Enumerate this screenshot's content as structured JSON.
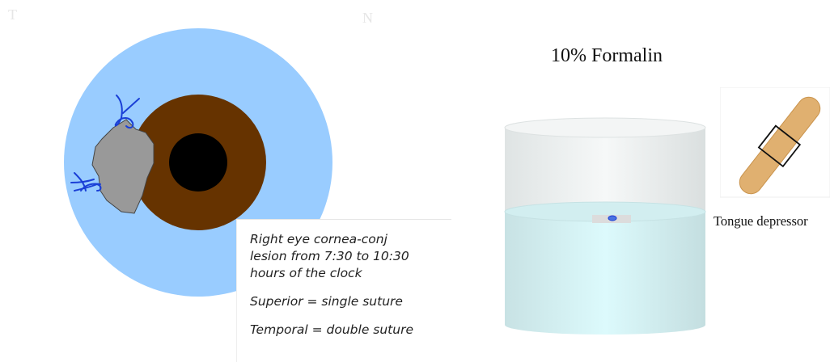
{
  "orientation": {
    "temporal": "T",
    "nasal": "N"
  },
  "note": {
    "lines": [
      "Right eye cornea-conj",
      "lesion from 7:30 to 10:30",
      "hours of the clock"
    ],
    "superior": "Superior = single suture",
    "temporal": "Temporal = double suture"
  },
  "container": {
    "title": "10% Formalin"
  },
  "tongue_depressor": {
    "caption": "Tongue depressor"
  },
  "colors": {
    "conjunctiva": "#99ccff",
    "iris": "#663300",
    "pupil": "#000000",
    "lesion": "#999999",
    "suture": "#1a3fd6",
    "formalin": "#dff7fa",
    "wood": "#e0b070"
  }
}
